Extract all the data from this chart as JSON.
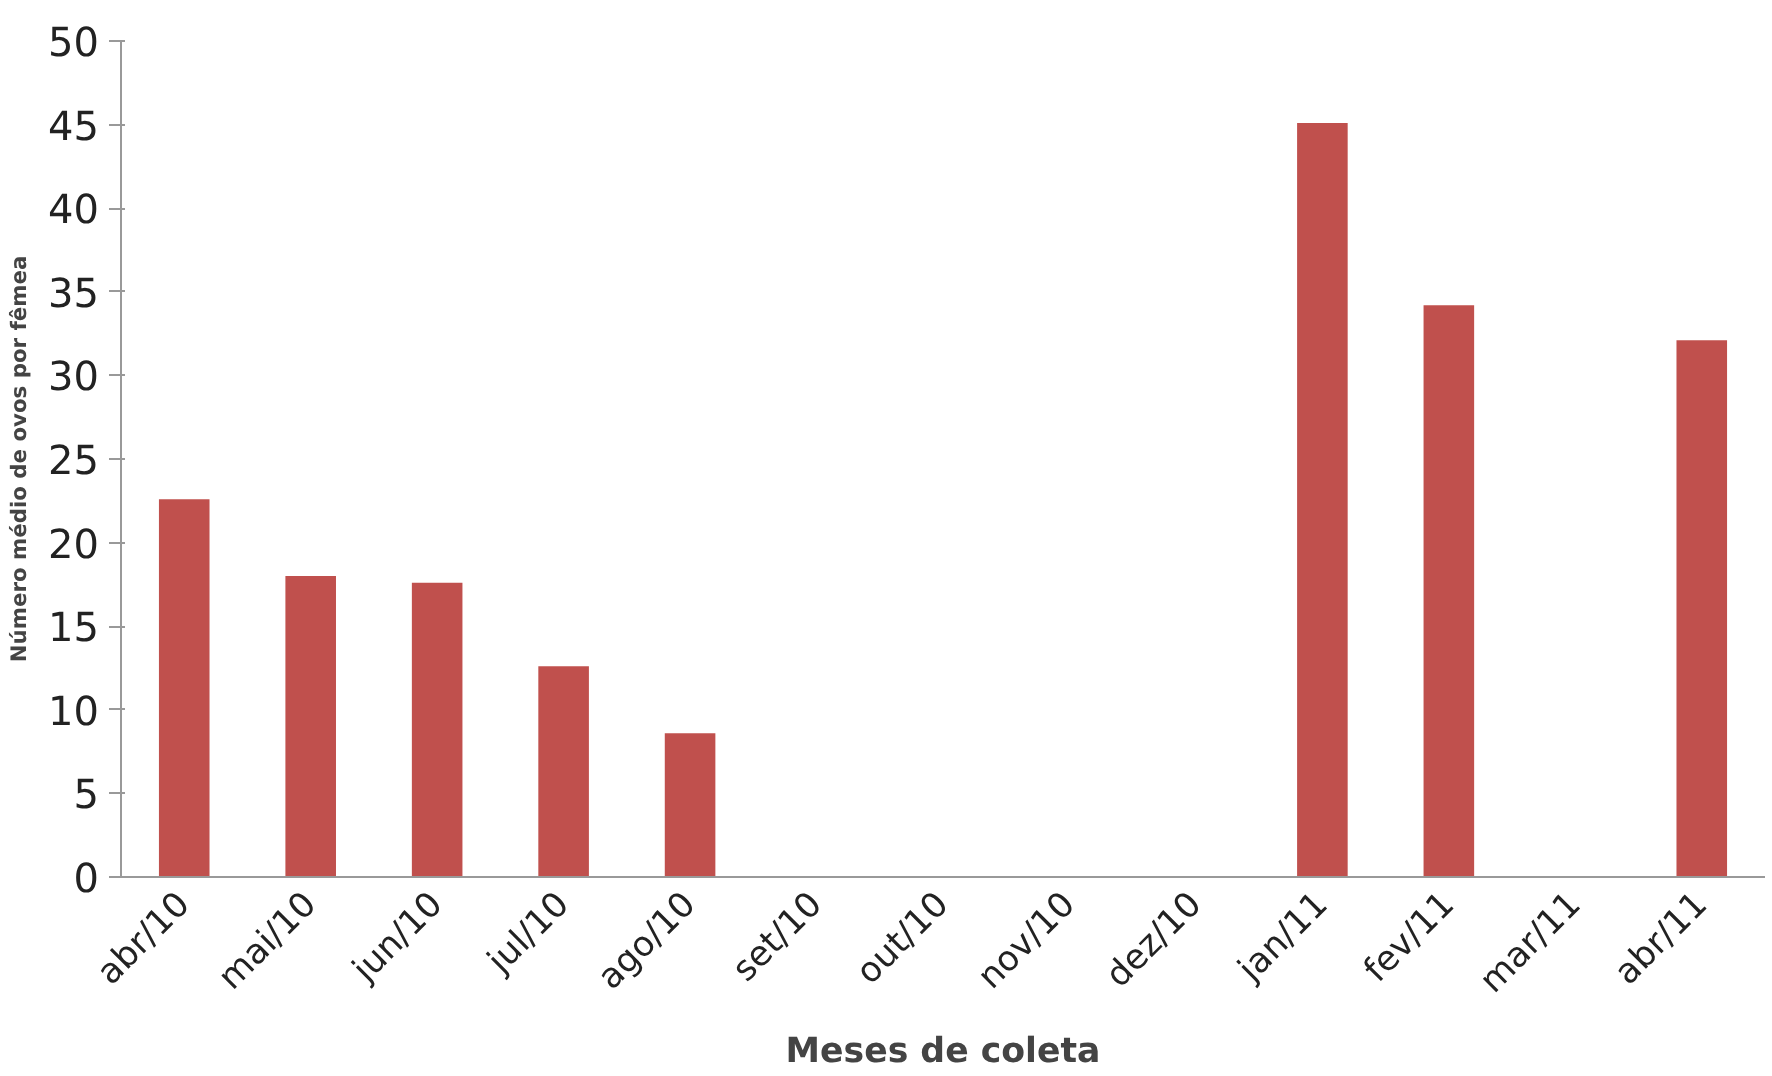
{
  "chart_data": {
    "type": "bar",
    "xlabel": "Meses de coleta",
    "ylabel": "Número médio de ovos por fêmea",
    "categories": [
      "abr/10",
      "mai/10",
      "jun/10",
      "jul/10",
      "ago/10",
      "set/10",
      "out/10",
      "nov/10",
      "dez/10",
      "jan/11",
      "fev/11",
      "mar/11",
      "abr/11"
    ],
    "values": [
      22.6,
      18.0,
      17.6,
      12.6,
      8.6,
      0,
      0,
      0,
      0,
      45.1,
      34.2,
      0,
      32.1
    ],
    "color": "#c0504d",
    "ylim": [
      0,
      50
    ],
    "yticks": [
      0,
      5,
      10,
      15,
      20,
      25,
      30,
      35,
      40,
      45,
      50
    ],
    "grid": false
  }
}
